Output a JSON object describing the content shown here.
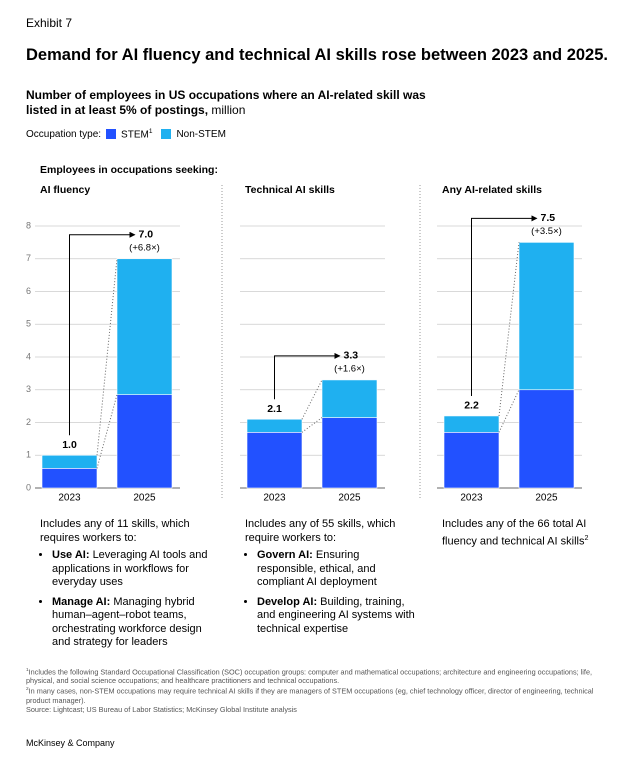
{
  "exhibit": "Exhibit 7",
  "title": "Demand for AI fluency and technical AI skills rose between 2023 and 2025.",
  "subtitle": "Number of employees in US occupations where an AI-related skill was listed in at least 5% of postings,",
  "subtitle_unit": "million",
  "legend_label": "Occupation type:",
  "stem_note_marker": "1",
  "panel_header": "Employees in occupations seeking:",
  "chart_data": [
    {
      "type": "bar",
      "stacked": true,
      "title": "AI fluency",
      "categories": [
        "2023",
        "2025"
      ],
      "series": [
        {
          "name": "STEM",
          "color": "#2251ff",
          "values": [
            0.6,
            2.85
          ]
        },
        {
          "name": "Non-STEM",
          "color": "#1fb0f0",
          "values": [
            0.4,
            4.15
          ]
        }
      ],
      "totals": [
        1,
        7
      ],
      "total_labels": [
        "1.0",
        "7.0"
      ],
      "growth": "(+6.8×)",
      "ylim": [
        0,
        8
      ],
      "yticks": [
        0,
        1,
        2,
        3,
        4,
        5,
        6,
        7,
        8
      ],
      "tick_labels": true,
      "grid": true,
      "description": "Includes any of 11 skills, which requires workers to:",
      "bullets": [
        {
          "term": "Use AI:",
          "text": "Leveraging AI tools and applications in workflows for everyday uses"
        },
        {
          "term": "Manage AI:",
          "text": "Managing hybrid human–agent–robot teams, orchestrating workforce design and strategy for leaders"
        }
      ]
    },
    {
      "type": "bar",
      "stacked": true,
      "title": "Technical AI skills",
      "categories": [
        "2023",
        "2025"
      ],
      "series": [
        {
          "name": "STEM",
          "color": "#2251ff",
          "values": [
            1.7,
            2.15
          ]
        },
        {
          "name": "Non-STEM",
          "color": "#1fb0f0",
          "values": [
            0.4,
            1.15
          ]
        }
      ],
      "totals": [
        2.1,
        3.3
      ],
      "total_labels": [
        "2.1",
        "3.3"
      ],
      "growth": "(+1.6×)",
      "ylim": [
        0,
        8
      ],
      "yticks": [
        0,
        1,
        2,
        3,
        4,
        5,
        6,
        7,
        8
      ],
      "tick_labels": false,
      "grid": true,
      "description": "Includes any of 55 skills, which require workers to:",
      "bullets": [
        {
          "term": "Govern AI:",
          "text": "Ensuring responsible, ethical, and compliant AI deployment"
        },
        {
          "term": "Develop AI:",
          "text": "Building, training, and engineering AI systems with technical expertise"
        }
      ]
    },
    {
      "type": "bar",
      "stacked": true,
      "title": "Any AI-related skills",
      "categories": [
        "2023",
        "2025"
      ],
      "series": [
        {
          "name": "STEM",
          "color": "#2251ff",
          "values": [
            1.7,
            3.0
          ]
        },
        {
          "name": "Non-STEM",
          "color": "#1fb0f0",
          "values": [
            0.5,
            4.5
          ]
        }
      ],
      "totals": [
        2.2,
        7.5
      ],
      "total_labels": [
        "2.2",
        "7.5"
      ],
      "growth": "(+3.5×)",
      "ylim": [
        0,
        8
      ],
      "yticks": [
        0,
        1,
        2,
        3,
        4,
        5,
        6,
        7,
        8
      ],
      "tick_labels": false,
      "grid": true,
      "description": "Includes any of the 66 total AI fluency and technical AI skills",
      "description_marker": "2",
      "bullets": []
    }
  ],
  "footnotes": [
    {
      "marker": "1",
      "text": "Includes the following Standard Occupational Classification (SOC) occupation groups: computer and mathematical occupations; architecture and engineering occupations; life, physical, and social science occupations; and healthcare practitioners and technical occupations."
    },
    {
      "marker": "2",
      "text": "In many cases, non-STEM occupations may require technical AI skills if they are managers of STEM occupations (eg, chief technology officer, director of engineering, technical product manager)."
    }
  ],
  "source": "Source: Lightcast; US Bureau of Labor Statistics; McKinsey Global Institute analysis",
  "brand": "McKinsey & Company"
}
